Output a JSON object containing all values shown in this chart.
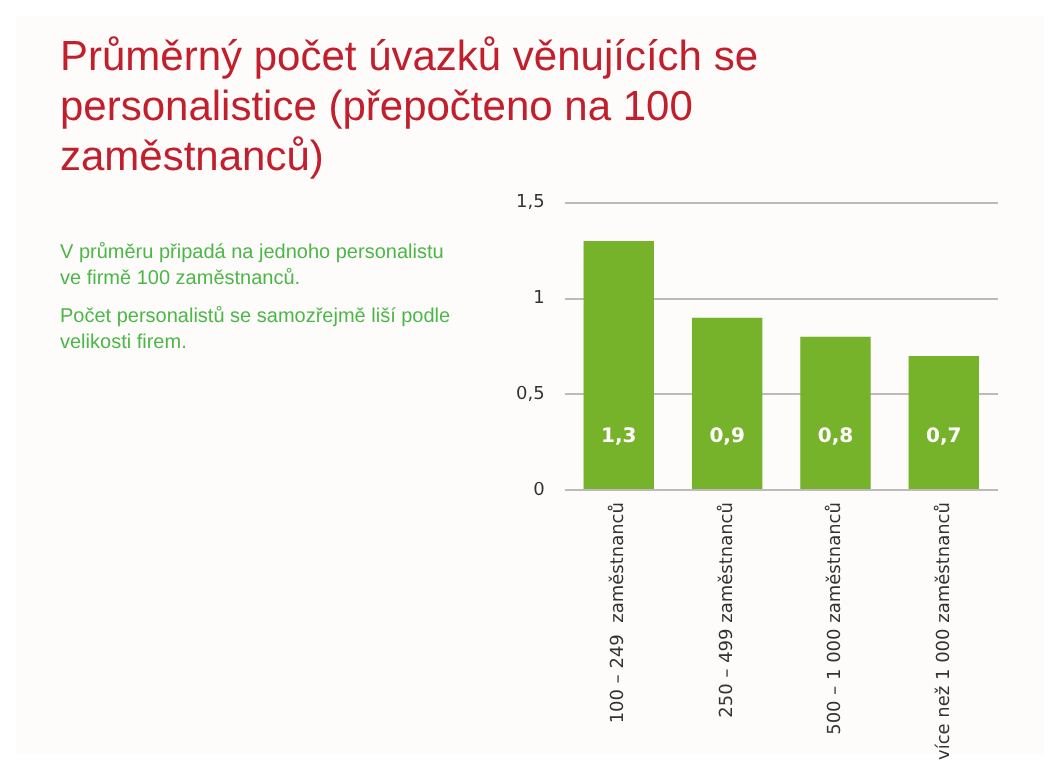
{
  "chart_data": {
    "type": "bar",
    "title": "Průměrný počet úvazků věnujících se personalistice (přepočteno na 100 zaměstnanců)",
    "annotations": [
      "V průměru připadá na jednoho personalistu ve firmě 100 zaměstnanců.",
      "Počet personalistů se samozřejmě liší podle velikosti firem."
    ],
    "categories": [
      "100 – 249  zaměstnanců",
      "250 – 499 zaměstnanců",
      "500 – 1 000 zaměstnanců",
      "více než 1 000 zaměstnanců"
    ],
    "values": [
      1.3,
      0.9,
      0.8,
      0.7
    ],
    "value_labels": [
      "1,3",
      "0,9",
      "0,8",
      "0,7"
    ],
    "color": "#77b22b",
    "ylim": [
      0,
      1.5
    ],
    "yticks": [
      0,
      {
        "value": 0.5,
        "label": "0,5"
      },
      1,
      {
        "value": 1.5,
        "label": "1,5"
      }
    ],
    "grid": "y",
    "legend": false
  }
}
